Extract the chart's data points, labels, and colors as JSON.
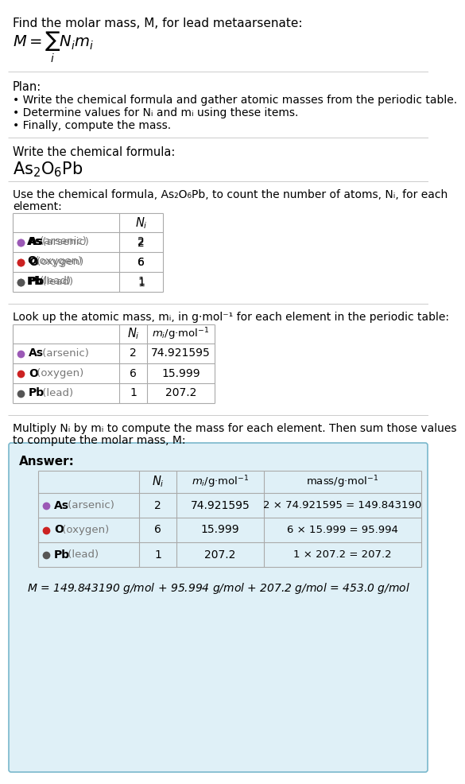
{
  "title": "Find the molar mass, M, for lead metaarsenate:",
  "bg_color": "#ffffff",
  "answer_bg": "#dff0f7",
  "answer_border": "#7ab8cc",
  "table_border": "#aaaaaa",
  "separator_color": "#bbbbbb",
  "text_color": "#000000",
  "gray_text": "#777777",
  "element_colors": {
    "As": "#9b59b6",
    "O": "#cc2222",
    "Pb": "#555555"
  },
  "elements": [
    {
      "symbol": "As",
      "name": "arsenic",
      "Ni": "2",
      "mi": "74.921595",
      "mass_eq": "2 × 74.921595 = 149.843190"
    },
    {
      "symbol": "O",
      "name": "oxygen",
      "Ni": "6",
      "mi": "15.999",
      "mass_eq": "6 × 15.999 = 95.994"
    },
    {
      "symbol": "Pb",
      "name": "lead",
      "Ni": "1",
      "mi": "207.2",
      "mass_eq": "1 × 207.2 = 207.2"
    }
  ],
  "plan_line0": "Plan:",
  "plan_line1": "• Write the chemical formula and gather atomic masses from the periodic table.",
  "plan_line2": "• Determine values for Nᵢ and mᵢ using these items.",
  "plan_line3": "• Finally, compute the mass.",
  "chem_formula_label": "Write the chemical formula:",
  "count_text1": "Use the chemical formula, As₂O₆Pb, to count the number of atoms, Nᵢ, for each",
  "count_text2": "element:",
  "lookup_text": "Look up the atomic mass, mᵢ, in g·mol⁻¹ for each element in the periodic table:",
  "multiply_text1": "Multiply Nᵢ by mᵢ to compute the mass for each element. Then sum those values",
  "multiply_text2": "to compute the molar mass, M:",
  "answer_label": "Answer:",
  "final_eq": "M = 149.843190 g/mol + 95.994 g/mol + 207.2 g/mol = 453.0 g/mol"
}
